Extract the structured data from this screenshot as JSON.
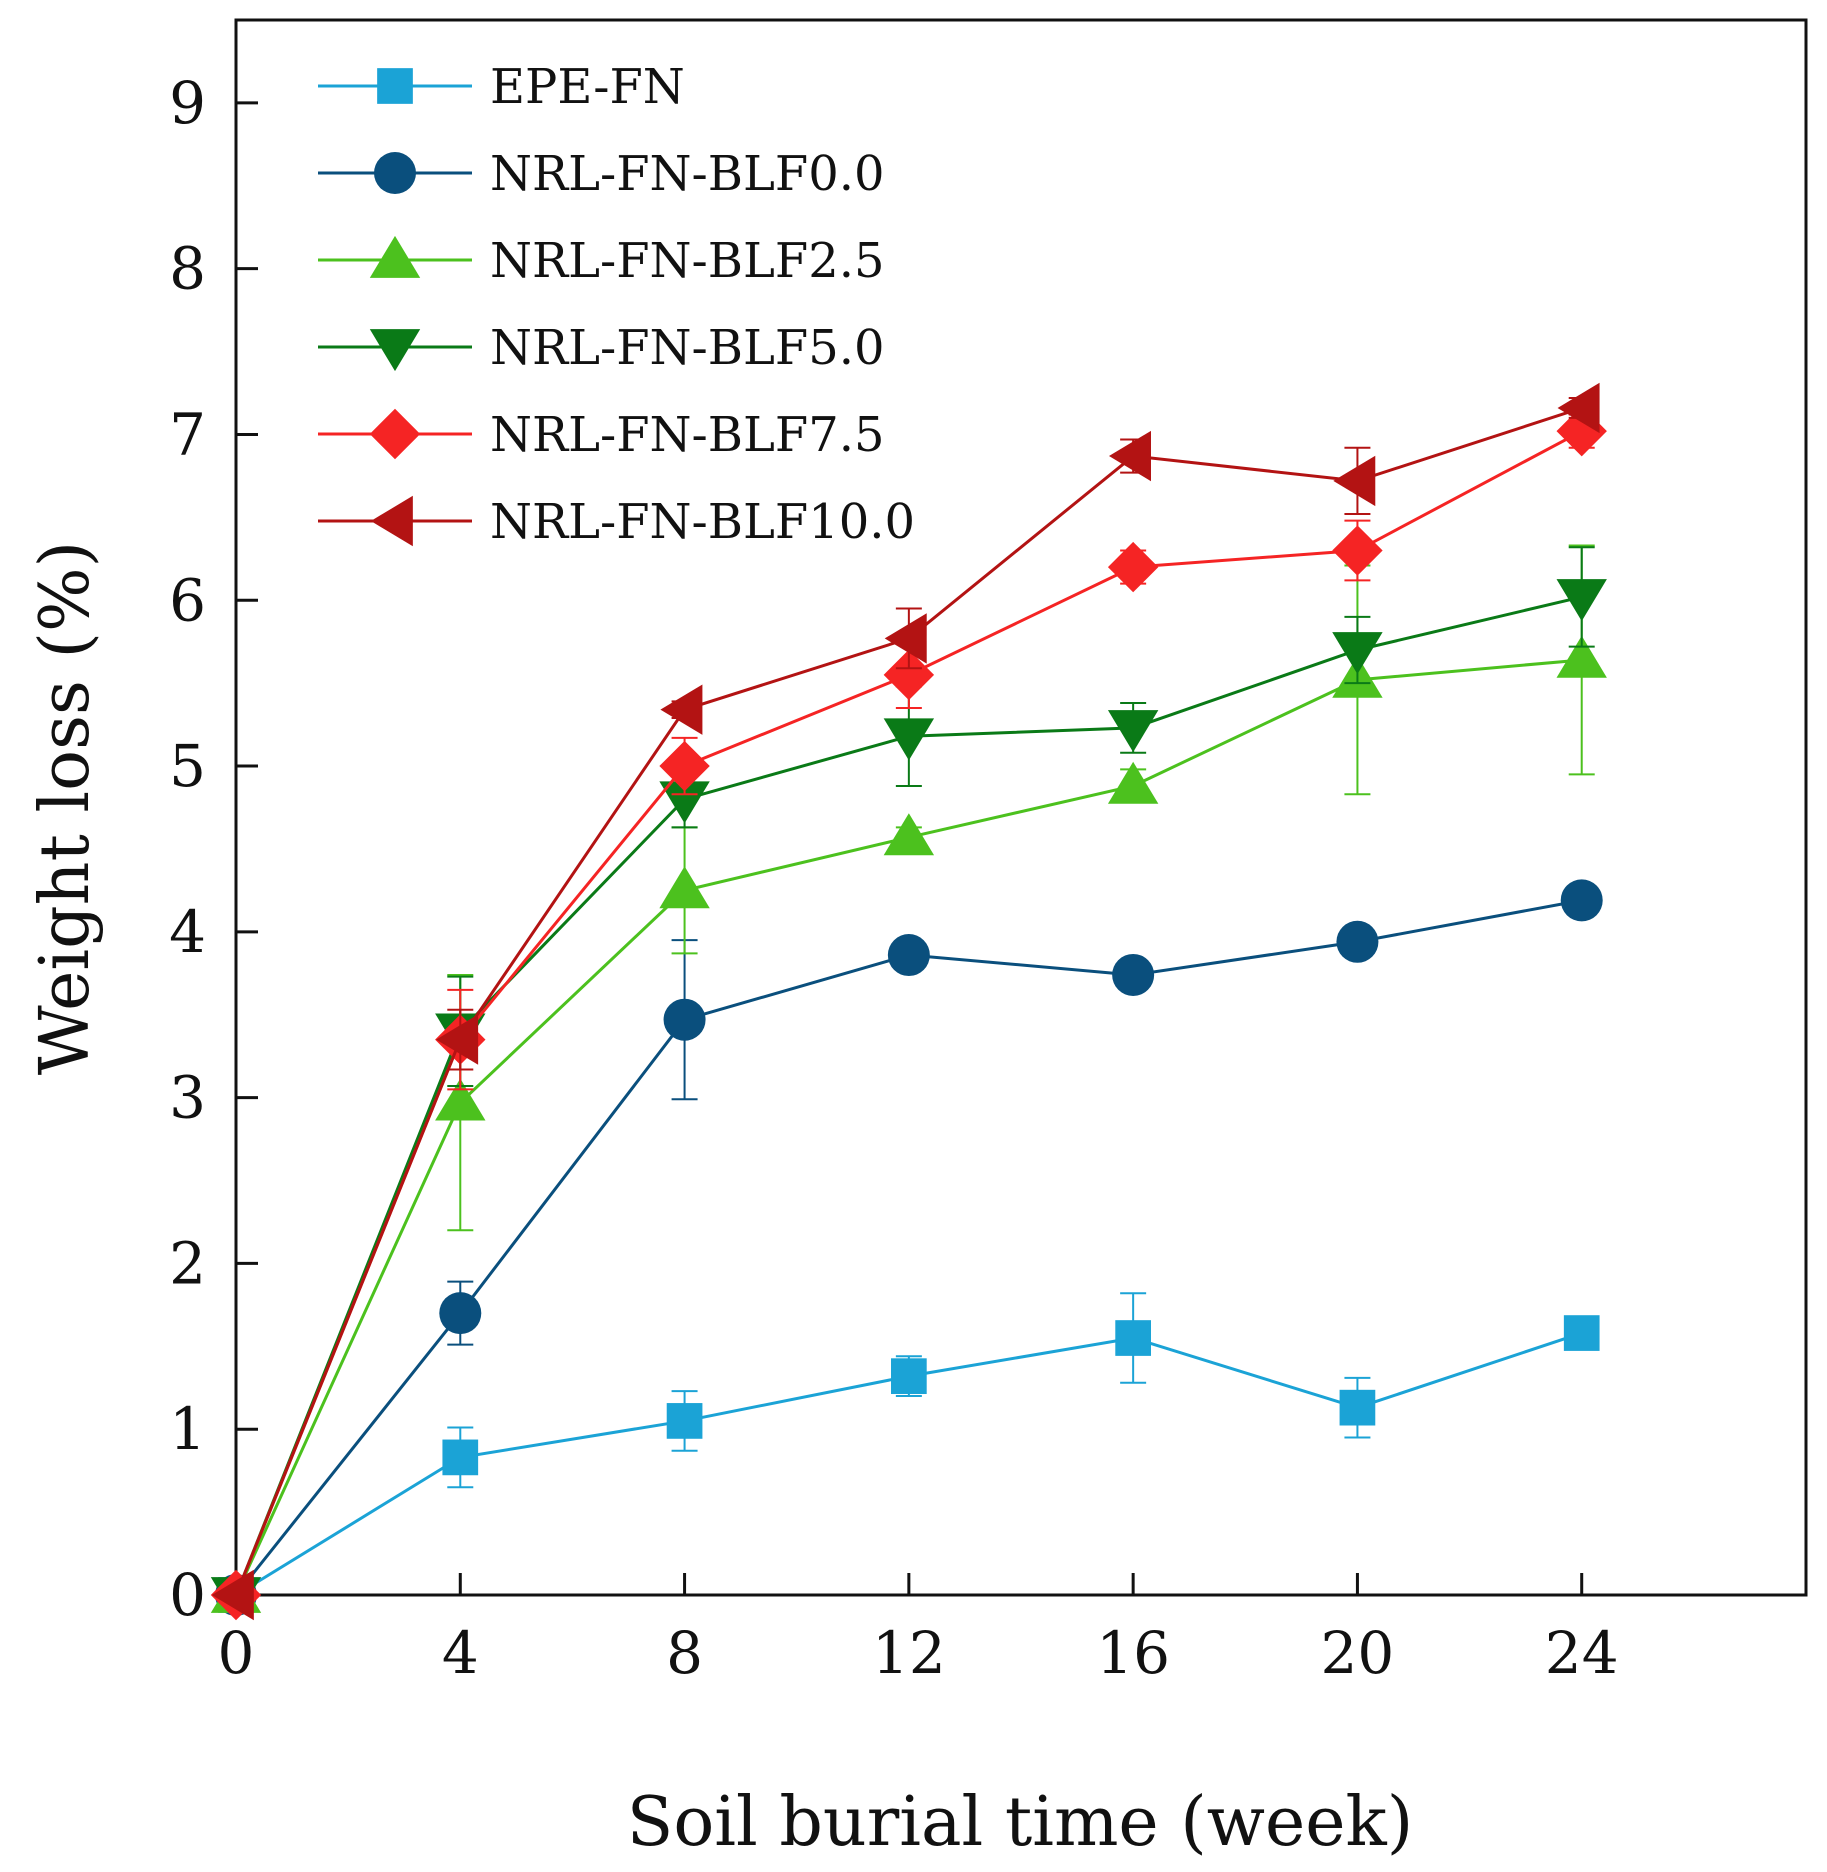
{
  "chart_data": {
    "type": "line",
    "xlabel": "Soil burial time (week)",
    "ylabel": "Weight loss (%)",
    "xlim": [
      0,
      28
    ],
    "ylim": [
      0,
      9.5
    ],
    "xticks": [
      0,
      4,
      8,
      12,
      16,
      20,
      24
    ],
    "yticks": [
      0,
      1,
      2,
      3,
      4,
      5,
      6,
      7,
      8,
      9
    ],
    "grid": false,
    "legend_position": "top-left",
    "x": [
      0,
      4,
      8,
      12,
      16,
      20,
      24
    ],
    "series": [
      {
        "name": "EPE-FN",
        "marker": "square",
        "color": "#1ba3d6",
        "values": [
          0,
          0.83,
          1.05,
          1.32,
          1.55,
          1.13,
          1.58
        ],
        "errors": [
          0,
          0.18,
          0.18,
          0.12,
          0.27,
          0.18,
          0.04
        ]
      },
      {
        "name": "NRL-FN-BLF0.0",
        "marker": "circle",
        "color": "#0a4f7d",
        "values": [
          0,
          1.7,
          3.47,
          3.86,
          3.74,
          3.94,
          4.19
        ],
        "errors": [
          0,
          0.19,
          0.48,
          0.05,
          0.05,
          0.05,
          0.05
        ]
      },
      {
        "name": "NRL-FN-BLF2.5",
        "marker": "triangle-up",
        "color": "#4cc11e",
        "values": [
          0,
          2.97,
          4.25,
          4.57,
          4.88,
          5.52,
          5.64
        ],
        "errors": [
          0,
          0.77,
          0.38,
          0.06,
          0.1,
          0.69,
          0.69
        ]
      },
      {
        "name": "NRL-FN-BLF5.0",
        "marker": "triangle-down",
        "color": "#0a7a17",
        "values": [
          0,
          3.4,
          4.8,
          5.18,
          5.23,
          5.7,
          6.02
        ],
        "errors": [
          0,
          0.33,
          0.17,
          0.3,
          0.15,
          0.2,
          0.3
        ]
      },
      {
        "name": "NRL-FN-BLF7.5",
        "marker": "diamond",
        "color": "#f52424",
        "values": [
          0,
          3.35,
          5.0,
          5.55,
          6.2,
          6.3,
          7.02
        ],
        "errors": [
          0,
          0.3,
          0.17,
          0.2,
          0.1,
          0.18,
          0.1
        ]
      },
      {
        "name": "NRL-FN-BLF10.0",
        "marker": "triangle-left",
        "color": "#b31313",
        "values": [
          0,
          3.35,
          5.34,
          5.77,
          6.87,
          6.72,
          7.16
        ],
        "errors": [
          0,
          0.18,
          0.05,
          0.18,
          0.1,
          0.2,
          0.06
        ]
      }
    ]
  }
}
